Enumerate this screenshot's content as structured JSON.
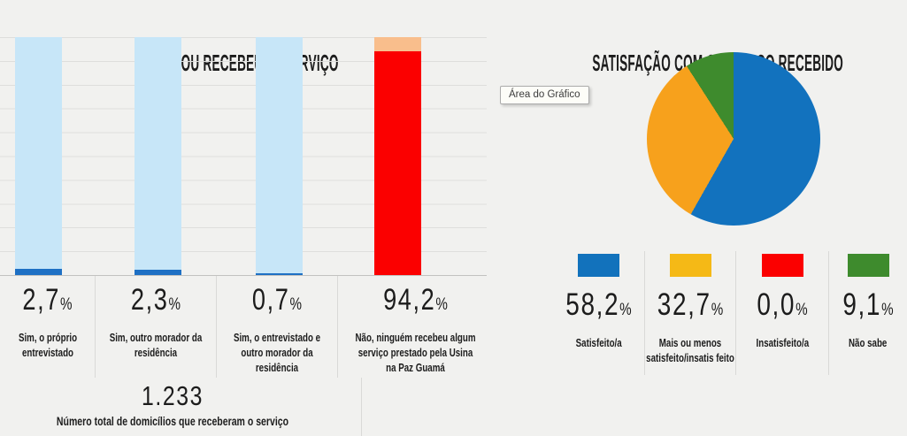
{
  "left_chart": {
    "title": "FEZ OU RECEBEU  O SERVIÇO",
    "percent_sign": "%",
    "bars": [
      {
        "value_label": "2,7",
        "category": "Sim, o próprio entrevistado"
      },
      {
        "value_label": "2,3",
        "category": "Sim, outro morador da residência"
      },
      {
        "value_label": "0,7",
        "category": "Sim, o entrevistado e outro morador da residência"
      },
      {
        "value_label": "94,2",
        "category": "Não, ninguém recebeu algum serviço prestado pela Usina na Paz Guamá"
      }
    ],
    "footer": {
      "total": "1.233",
      "caption": "Número total de domicílios que receberam o serviço"
    }
  },
  "right_chart": {
    "title": "SATISFAÇÃO COM O SERVIÇO RECEBIDO",
    "tooltip": "Área do Gráfico",
    "percent_sign": "%",
    "legend": [
      {
        "value_label": "58,2",
        "label": "Satisfeito/a",
        "color": "#1272bc"
      },
      {
        "value_label": "32,7",
        "label": "Mais ou menos satisfeito/insatis feito",
        "color": "#f5b916"
      },
      {
        "value_label": "0,0",
        "label": "Insatisfeito/a",
        "color": "#fb0000"
      },
      {
        "value_label": "9,1",
        "label": "Não sabe",
        "color": "#3e8b2d"
      }
    ]
  },
  "chart_data": [
    {
      "type": "bar",
      "title": "FEZ OU RECEBEU  O SERVIÇO",
      "stacked": true,
      "categories": [
        "Sim, o próprio entrevistado",
        "Sim, outro morador da residência",
        "Sim, o entrevistado e outro morador da residência",
        "Não, ninguém recebeu algum serviço prestado pela Usina na Paz Guamá"
      ],
      "values": [
        2.7,
        2.3,
        0.7,
        94.2
      ],
      "remainder_values": [
        97.3,
        97.7,
        99.3,
        5.8
      ],
      "value_unit": "%",
      "ylim": [
        0,
        100
      ],
      "grid": true,
      "gridline_step_pct": 10,
      "annotation": {
        "total": "1.233",
        "caption": "Número total de domicílios que receberam o serviço"
      },
      "colors": {
        "yes_value_fill": "#1e70c4",
        "yes_remainder_fill": "#c7e6f8",
        "no_value_fill": "#fb0000",
        "no_remainder_fill": "#f9be8c"
      }
    },
    {
      "type": "pie",
      "title": "SATISFAÇÃO COM O SERVIÇO RECEBIDO",
      "labels": [
        "Satisfeito/a",
        "Mais ou menos satisfeito/insatisfeito",
        "Insatisfeito/a",
        "Não sabe"
      ],
      "values": [
        58.2,
        32.7,
        0.0,
        9.1
      ],
      "colors": [
        "#1272be",
        "#f7a11c",
        "#fb0000",
        "#3e8b2d"
      ],
      "start_angle_deg": 0,
      "direction": "clockwise",
      "legend_position": "bottom"
    }
  ]
}
